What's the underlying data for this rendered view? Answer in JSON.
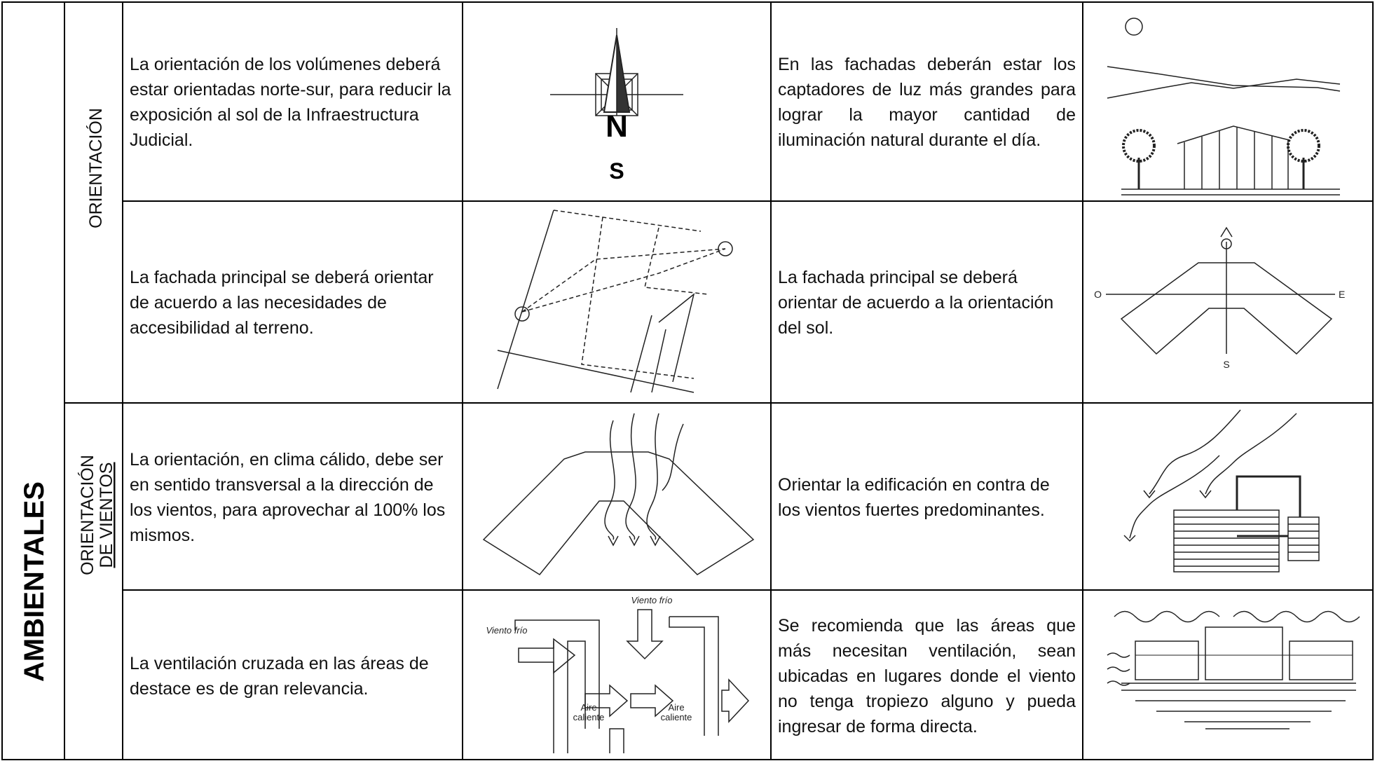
{
  "table": {
    "category": "AMBIENTALES",
    "groups": [
      {
        "label_lines": [
          "ORIENTACIÓN"
        ],
        "rows": [
          {
            "criterion": "La orientación de los volúmenes deberá estar orientadas  norte-sur, para reducir la exposición al sol de la Infraestructura Judicial.",
            "recommendation": "En las fachadas deberán estar los captadores de luz más grandes para lograr la mayor cantidad de iluminación natural durante el día."
          },
          {
            "criterion": "La fachada principal se deberá orientar de acuerdo a las necesidades de accesibilidad al terreno.",
            "recommendation": "La fachada principal se deberá orientar de acuerdo a la orientación del sol."
          }
        ]
      },
      {
        "label_lines": [
          "ORIENTACIÓN",
          "DE VIENTOS"
        ],
        "rows": [
          {
            "criterion": "La orientación, en clima cálido, debe ser en sentido transversal a la dirección de los vientos, para aprovechar al 100% los mismos.",
            "recommendation": "Orientar la edificación en contra de los vientos fuertes predominantes."
          },
          {
            "criterion": "La ventilación cruzada en las áreas de destace es de gran relevancia.",
            "recommendation": "Se recomienda que las áreas que más necesitan ventilación, sean ubicadas en lugares donde el viento no tenga tropiezo alguno y pueda ingresar de forma directa."
          }
        ]
      }
    ]
  },
  "figures": {
    "compass": {
      "north": "N",
      "south": "S"
    },
    "sun_orientation": {
      "west": "O",
      "east": "E",
      "south": "S"
    },
    "cross_ventilation": {
      "cold_wind_left": "Viento frío",
      "cold_wind_top": "Viento frío",
      "warm_air_left": "Aire caliente",
      "warm_air_right": "Aire caliente"
    }
  }
}
